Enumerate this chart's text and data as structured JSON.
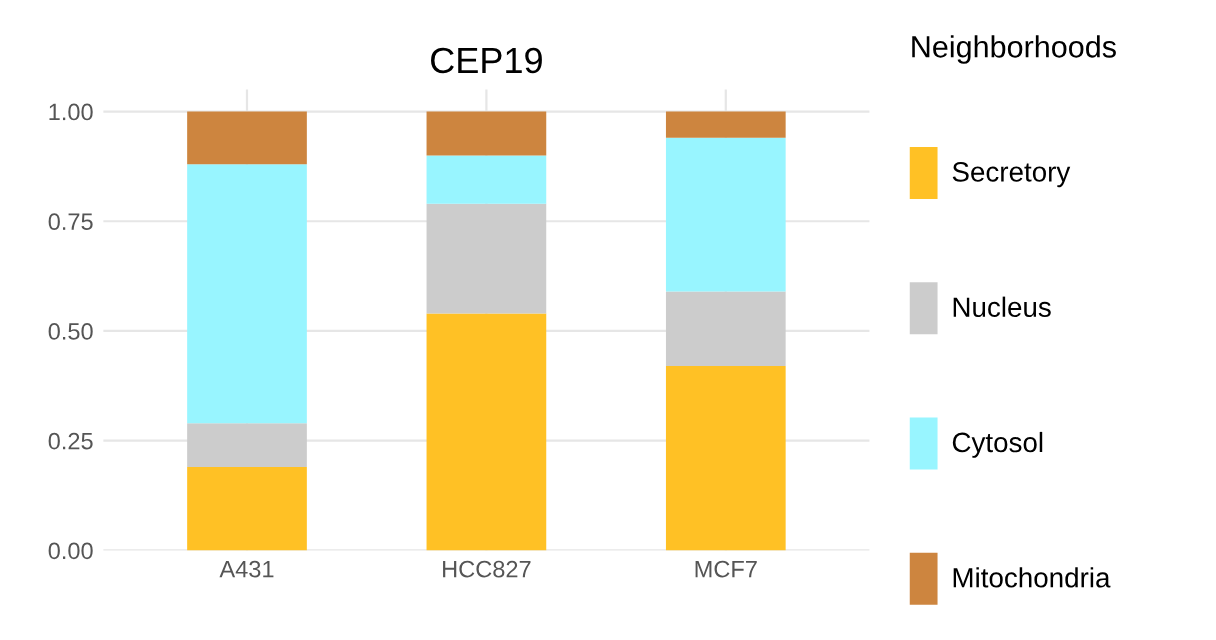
{
  "chart_data": {
    "type": "bar",
    "title": "CEP19",
    "legend_title": "Neighborhoods",
    "categories": [
      "A431",
      "HCC827",
      "MCF7"
    ],
    "stacked": true,
    "series": [
      {
        "name": "Secretory",
        "color": "#ffc125",
        "values": [
          0.19,
          0.54,
          0.42
        ]
      },
      {
        "name": "Nucleus",
        "color": "#cccccc",
        "values": [
          0.1,
          0.25,
          0.17
        ]
      },
      {
        "name": "Cytosol",
        "color": "#98f5ff",
        "values": [
          0.59,
          0.11,
          0.35
        ]
      },
      {
        "name": "Mitochondria",
        "color": "#cd853f",
        "values": [
          0.12,
          0.1,
          0.06
        ]
      }
    ],
    "ylim": [
      0,
      1.05
    ],
    "yticks": [
      {
        "value": 0,
        "label": "0.00"
      },
      {
        "value": 0.25,
        "label": "0.25"
      },
      {
        "value": 0.5,
        "label": "0.50"
      },
      {
        "value": 0.75,
        "label": "0.75"
      },
      {
        "value": 1,
        "label": "1.00"
      }
    ],
    "grid": true,
    "legend": "right"
  }
}
